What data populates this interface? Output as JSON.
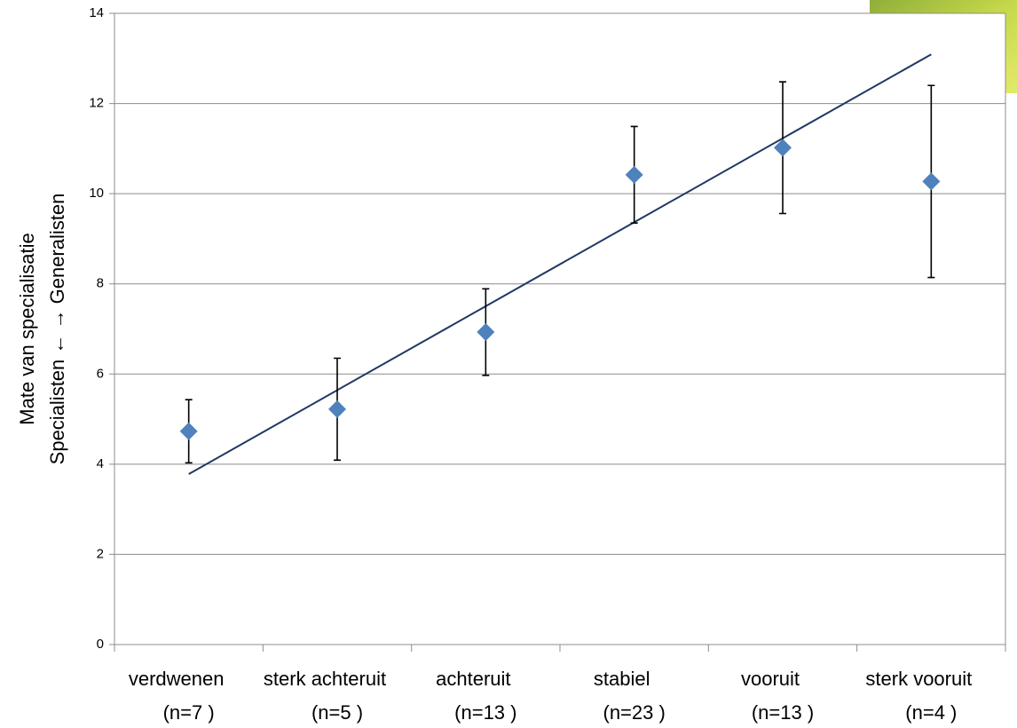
{
  "chart_data": {
    "type": "scatter",
    "ylabel": [
      "Mate van specialisatie",
      "Specialisten ← → Generalisten"
    ],
    "categories": [
      "verdwenen",
      "sterk achteruit",
      "achteruit",
      "stabiel",
      "vooruit",
      "sterk vooruit"
    ],
    "category_counts": [
      "(n=7 )",
      "(n=5 )",
      "(n=13 )",
      "(n=23 )",
      "(n=13 )",
      "(n=4 )"
    ],
    "values": [
      4.73,
      5.22,
      6.93,
      10.42,
      11.02,
      10.27
    ],
    "errors": [
      0.7,
      1.13,
      0.96,
      1.07,
      1.46,
      2.13
    ],
    "color": "#4f81bd",
    "trendline": {
      "start": 3.78,
      "end": 13.09,
      "color": "#1f3864"
    },
    "ylim": [
      0,
      14
    ],
    "yticks": [
      0,
      2,
      4,
      6,
      8,
      10,
      12,
      14
    ],
    "grid": true
  }
}
